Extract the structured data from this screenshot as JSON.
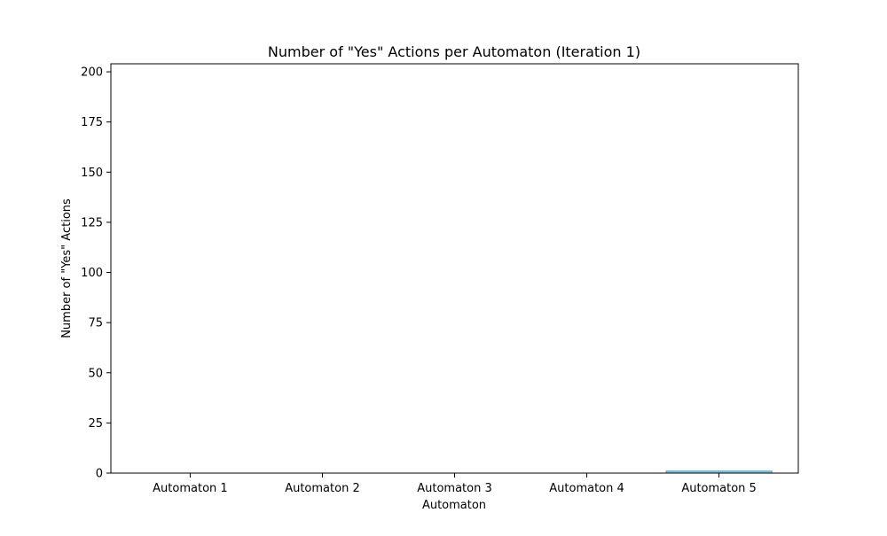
{
  "chart_data": {
    "type": "bar",
    "title": "Number of \"Yes\" Actions per Automaton (Iteration 1)",
    "xlabel": "Automaton",
    "ylabel": "Number of \"Yes\" Actions",
    "categories": [
      "Automaton 1",
      "Automaton 2",
      "Automaton 3",
      "Automaton 4",
      "Automaton 5"
    ],
    "values": [
      0,
      0,
      0,
      0,
      1
    ],
    "ylim": [
      0,
      204
    ],
    "yticks": [
      0,
      25,
      50,
      75,
      100,
      125,
      150,
      175,
      200
    ],
    "grid": false,
    "legend": "none",
    "colors": {
      "bar": "#87ceeb",
      "bar_edge": "#4a9fc8",
      "axis": "#000000",
      "background": "#ffffff"
    }
  }
}
